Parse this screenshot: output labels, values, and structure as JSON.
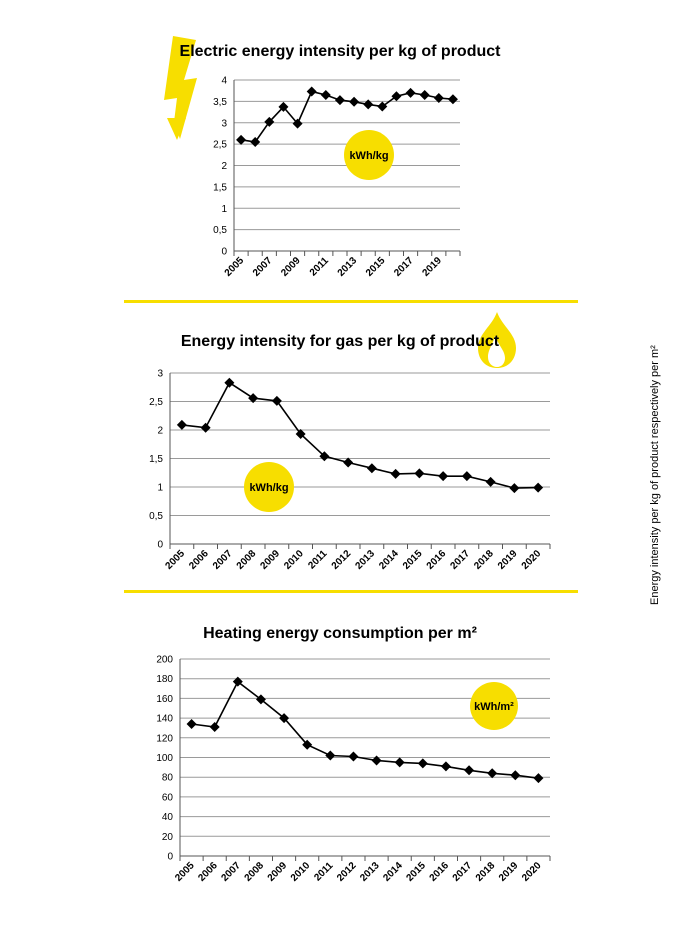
{
  "side_label": "Energy intensity per kg of product respectively per m²",
  "colors": {
    "accent": "#f7de00",
    "line": "#000000",
    "grid": "#9a9a9a"
  },
  "chart_data": [
    {
      "type": "line",
      "title": "Electric energy intensity per kg of product",
      "icon": "lightning-icon",
      "unit_badge": "kWh/kg",
      "x": [
        "2005",
        "2006",
        "2007",
        "2008",
        "2009",
        "2010",
        "2011",
        "2012",
        "2013",
        "2014",
        "2015",
        "2016",
        "2017",
        "2018",
        "2019",
        "2020"
      ],
      "x_tick_labels": [
        "2005",
        "2007",
        "2009",
        "2011",
        "2013",
        "2015",
        "2017",
        "2019"
      ],
      "values": [
        2.6,
        2.55,
        3.02,
        3.37,
        2.98,
        3.73,
        3.65,
        3.53,
        3.49,
        3.43,
        3.38,
        3.62,
        3.7,
        3.65,
        3.58,
        3.55
      ],
      "ylim": [
        0,
        4
      ],
      "y_ticks": [
        "0",
        "0,5",
        "1",
        "1,5",
        "2",
        "2,5",
        "3",
        "3,5",
        "4"
      ],
      "grid": true
    },
    {
      "type": "line",
      "title": "Energy intensity for gas per kg of product",
      "icon": "flame-icon",
      "unit_badge": "kWh/kg",
      "x": [
        "2005",
        "2006",
        "2007",
        "2008",
        "2009",
        "2010",
        "2011",
        "2012",
        "2013",
        "2014",
        "2015",
        "2016",
        "2017",
        "2018",
        "2019",
        "2020"
      ],
      "x_tick_labels": [
        "2005",
        "2006",
        "2007",
        "2008",
        "2009",
        "2010",
        "2011",
        "2012",
        "2013",
        "2014",
        "2015",
        "2016",
        "2017",
        "2018",
        "2019",
        "2020"
      ],
      "values": [
        2.09,
        2.04,
        2.83,
        2.56,
        2.51,
        1.93,
        1.54,
        1.43,
        1.33,
        1.23,
        1.24,
        1.19,
        1.19,
        1.09,
        0.98,
        0.99
      ],
      "ylim": [
        0,
        3
      ],
      "y_ticks": [
        "0",
        "0,5",
        "1",
        "1,5",
        "2",
        "2,5",
        "3"
      ],
      "grid": true
    },
    {
      "type": "line",
      "title": "Heating energy consumption per m²",
      "unit_badge": "kWh/m²",
      "x": [
        "2005",
        "2006",
        "2007",
        "2008",
        "2009",
        "2010",
        "2011",
        "2012",
        "2013",
        "2014",
        "2015",
        "2016",
        "2017",
        "2018",
        "2019",
        "2020"
      ],
      "x_tick_labels": [
        "2005",
        "2006",
        "2007",
        "2008",
        "2009",
        "2010",
        "2011",
        "2012",
        "2013",
        "2014",
        "2015",
        "2016",
        "2017",
        "2018",
        "2019",
        "2020"
      ],
      "values": [
        134,
        131,
        177,
        159,
        140,
        113,
        102,
        101,
        97,
        95,
        94,
        91,
        87,
        84,
        82,
        79
      ],
      "ylim": [
        0,
        200
      ],
      "y_ticks": [
        "0",
        "20",
        "40",
        "60",
        "80",
        "100",
        "120",
        "140",
        "160",
        "180",
        "200"
      ],
      "grid": true
    }
  ]
}
